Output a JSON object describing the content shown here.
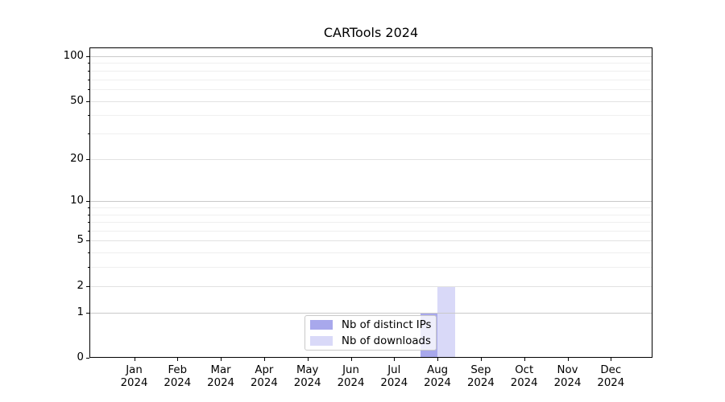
{
  "title": "CARTools 2024",
  "chart_data": {
    "type": "bar",
    "title": "CARTools 2024",
    "xlabel": "",
    "ylabel": "",
    "categories": [
      "Jan 2024",
      "Feb 2024",
      "Mar 2024",
      "Apr 2024",
      "May 2024",
      "Jun 2024",
      "Jul 2024",
      "Aug 2024",
      "Sep 2024",
      "Oct 2024",
      "Nov 2024",
      "Dec 2024"
    ],
    "series": [
      {
        "name": "Nb of distinct IPs",
        "color": "#a8a8ec",
        "values": [
          0,
          0,
          0,
          0,
          0,
          0,
          0,
          1,
          0,
          0,
          0,
          0
        ]
      },
      {
        "name": "Nb of downloads",
        "color": "#d9d9f8",
        "values": [
          0,
          0,
          0,
          0,
          0,
          0,
          0,
          2,
          0,
          0,
          0,
          0
        ]
      }
    ],
    "y_axis": {
      "scale": "log1p",
      "min": 0,
      "max": 114.6,
      "labeled_ticks": [
        0,
        1,
        2,
        5,
        10,
        20,
        50,
        100
      ],
      "major_gridlines": [
        1,
        10,
        100
      ],
      "mid_gridlines": [
        2,
        5,
        20,
        50
      ],
      "minor_gridlines": [
        3,
        4,
        6,
        7,
        8,
        9,
        30,
        40,
        60,
        70,
        80,
        90
      ]
    },
    "legend": {
      "position": "inside-bottom-center",
      "entries": [
        "Nb of distinct IPs",
        "Nb of downloads"
      ]
    },
    "grid": true
  },
  "colors": {
    "background": "#ffffff",
    "axis": "#000000",
    "text": "#000000",
    "grid_major": "#c9c9c9",
    "grid_mid": "#e2e2e2",
    "grid_minor": "#efefef",
    "legend_border": "#c9c9c9",
    "legend_bg": "rgba(255,255,255,0.8)"
  }
}
